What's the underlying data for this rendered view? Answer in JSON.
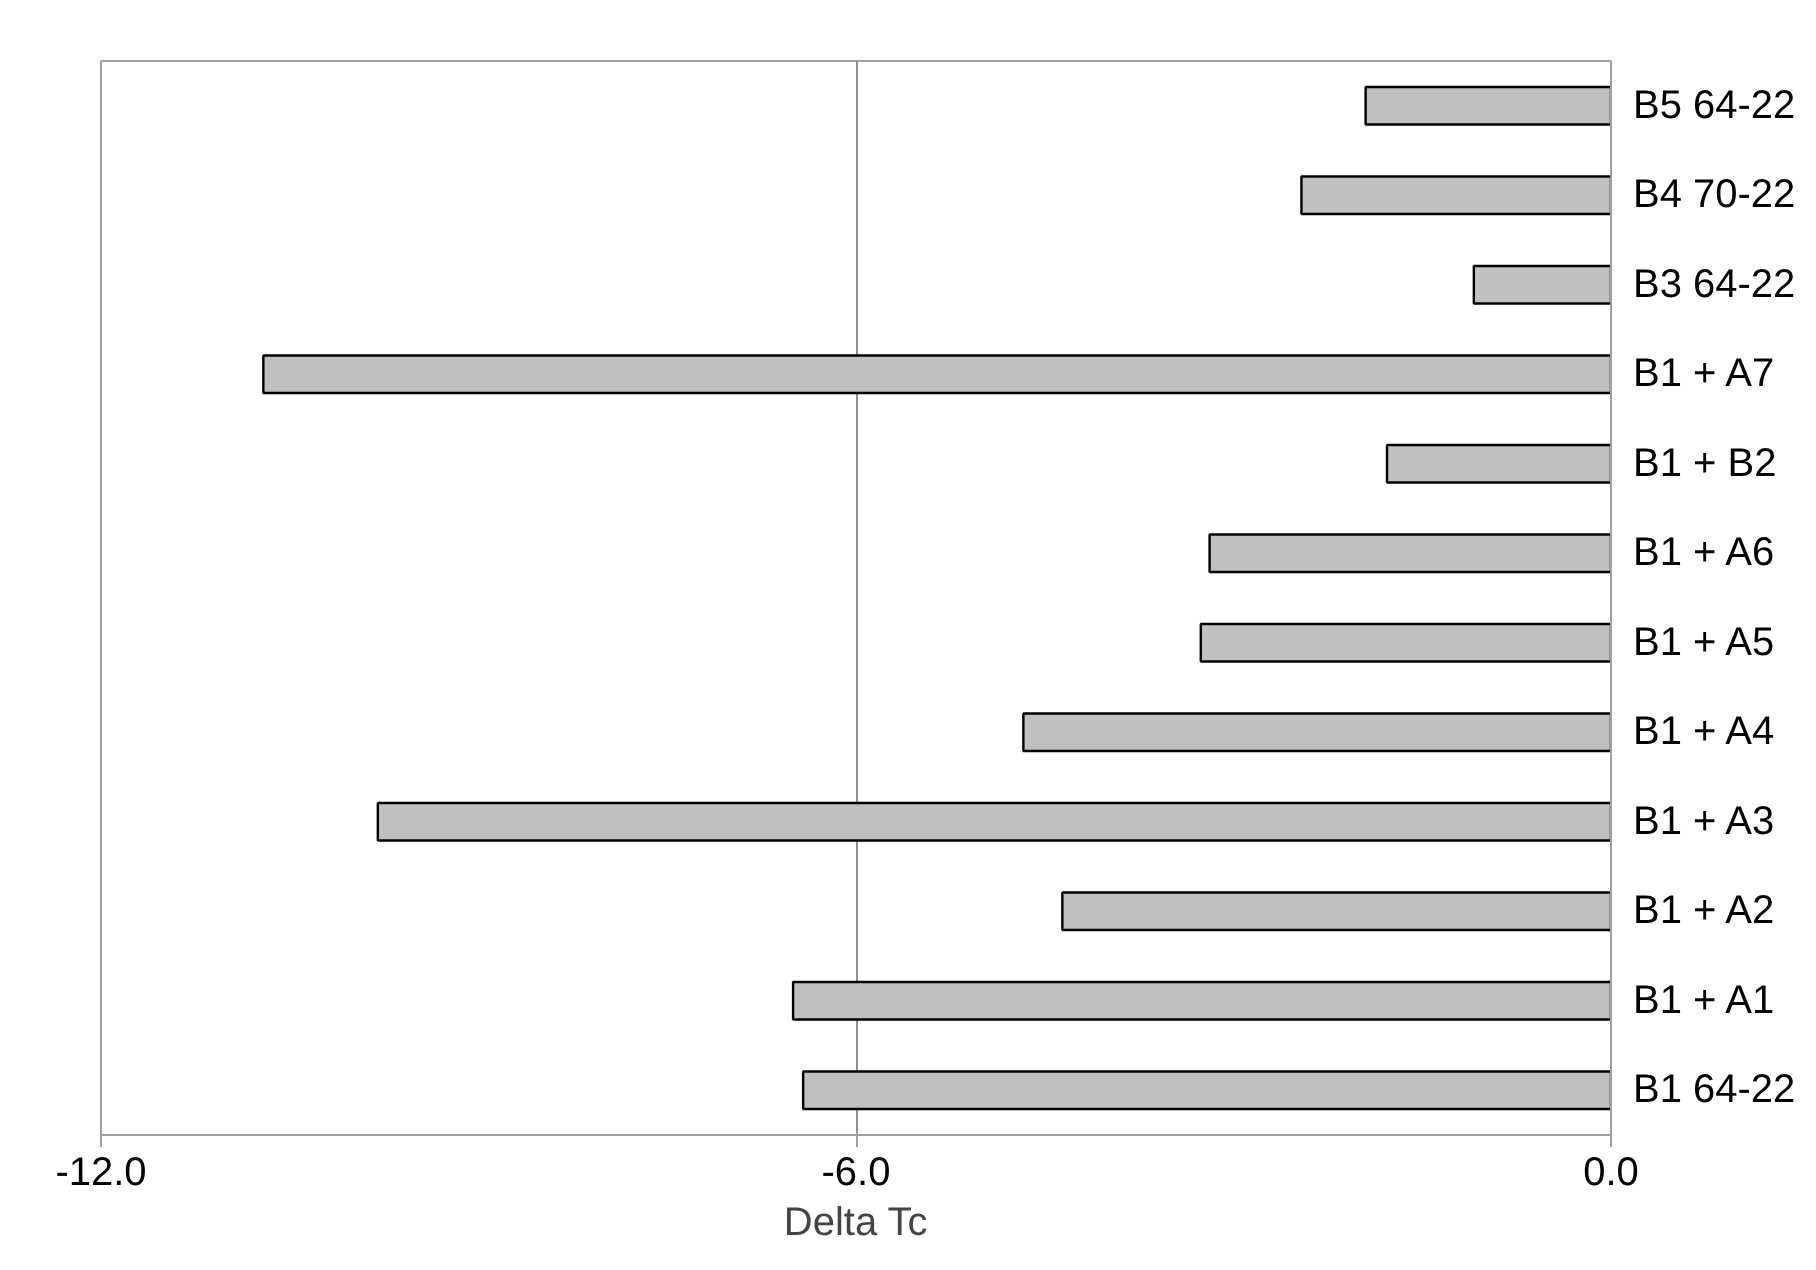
{
  "chart_data": {
    "type": "bar",
    "orientation": "horizontal",
    "xlabel": "Delta Tc",
    "categories": [
      "B5 64-22",
      "B4 70-22",
      "B3 64-22",
      "B1 + A7",
      "B1 + B2",
      "B1 + A6",
      "B1 + A5",
      "B1 + A4",
      "B1 + A3",
      "B1 + A2",
      "B1 + A1",
      "B1 64-22"
    ],
    "values": [
      -1.95,
      -2.46,
      -1.09,
      -10.71,
      -1.78,
      -3.19,
      -3.26,
      -4.67,
      -9.8,
      -4.36,
      -6.5,
      -6.42
    ],
    "color": "#c0c0c0",
    "xlim": [
      -12,
      0
    ],
    "xticks": [
      {
        "value": -12,
        "label": "-12.0"
      },
      {
        "value": -6,
        "label": "-6.0"
      },
      {
        "value": 0,
        "label": "0.0"
      }
    ],
    "grid": "x"
  }
}
